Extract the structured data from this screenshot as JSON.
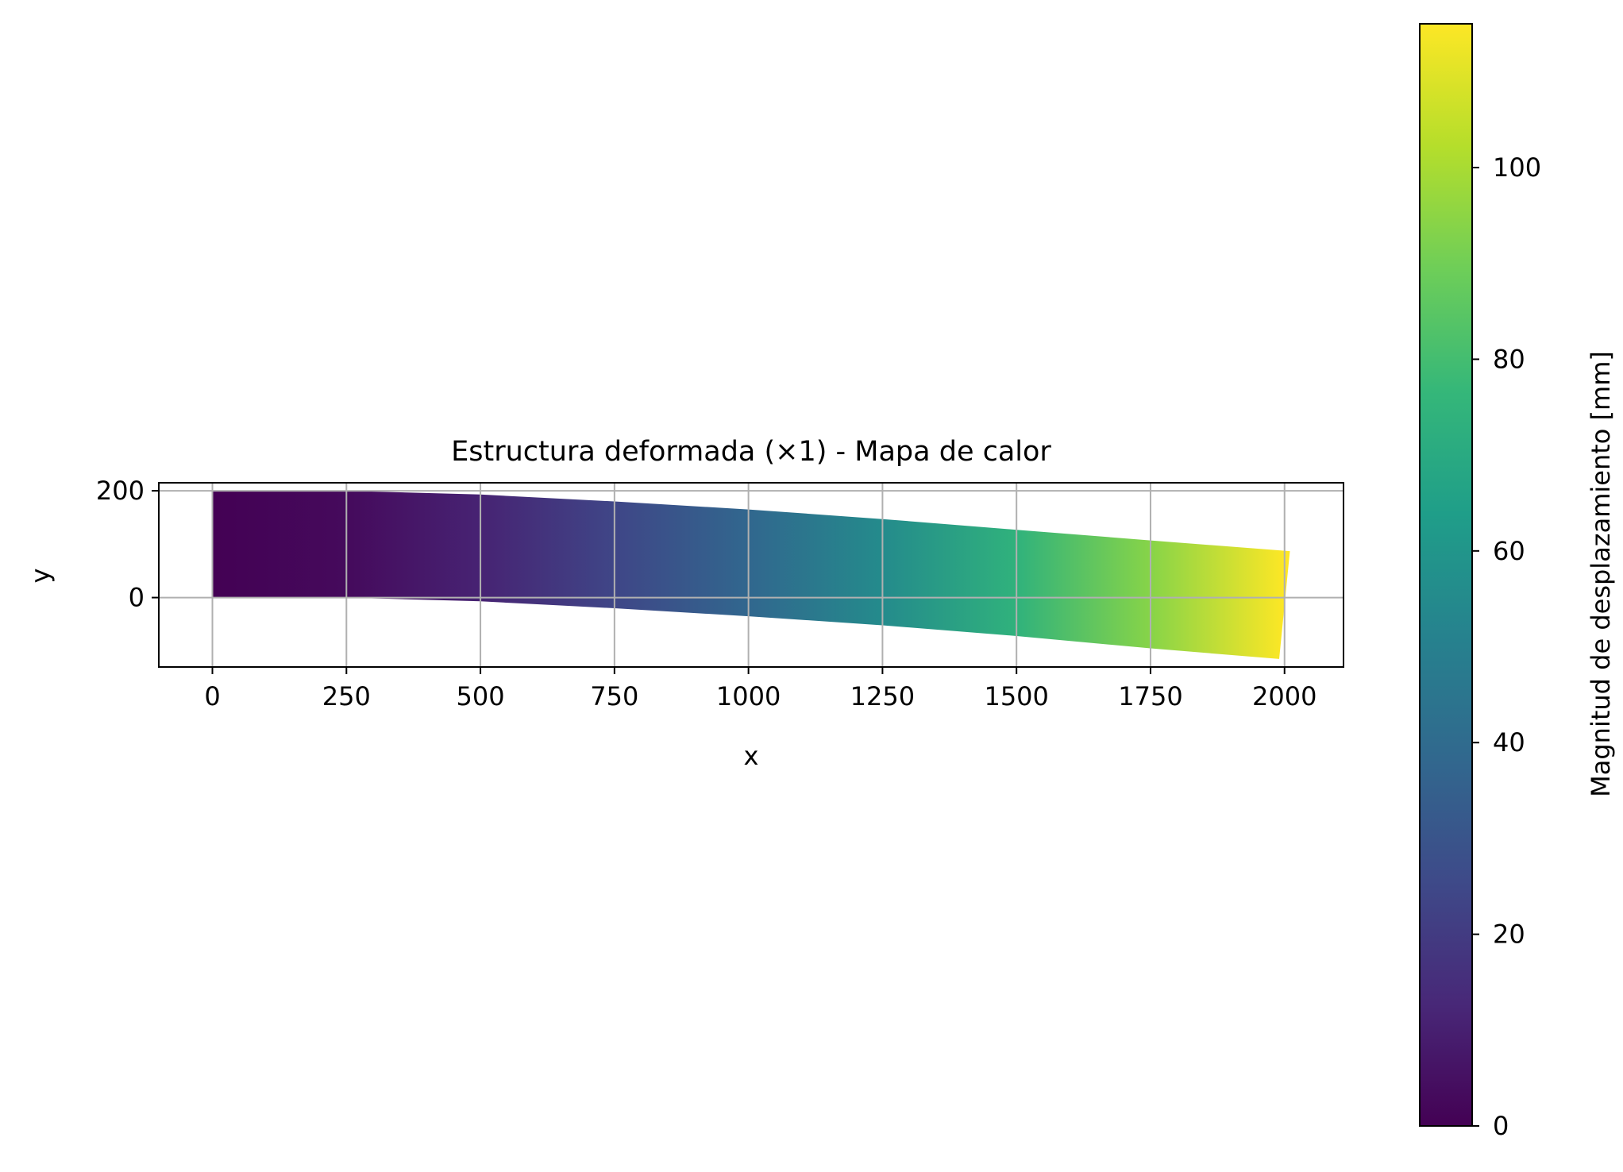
{
  "chart_data": {
    "type": "heatmap",
    "title": "Estructura deformada (×1) - Mapa de calor",
    "xlabel": "x",
    "ylabel": "y",
    "xlim": [
      -100,
      2110
    ],
    "ylim": [
      -130,
      215
    ],
    "xticks": [
      0,
      250,
      500,
      750,
      1000,
      1250,
      1500,
      1750,
      2000
    ],
    "yticks": [
      0,
      200
    ],
    "grid": true,
    "colormap": "viridis",
    "colormap_stops": [
      "#440154",
      "#482878",
      "#3e4a89",
      "#31688e",
      "#26828e",
      "#1f9e89",
      "#35b779",
      "#6ece58",
      "#b5de2b",
      "#fde725"
    ],
    "colorbar": {
      "label": "Magnitud de desplazamiento [mm]",
      "min": 0,
      "max": 115,
      "ticks": [
        0,
        20,
        40,
        60,
        80,
        100
      ]
    },
    "deformed_shape": {
      "top_edge": [
        {
          "x": 0,
          "y": 200
        },
        {
          "x": 250,
          "y": 200
        },
        {
          "x": 500,
          "y": 193
        },
        {
          "x": 750,
          "y": 180
        },
        {
          "x": 1000,
          "y": 165
        },
        {
          "x": 1250,
          "y": 147
        },
        {
          "x": 1500,
          "y": 127
        },
        {
          "x": 1750,
          "y": 107
        },
        {
          "x": 2010,
          "y": 87
        }
      ],
      "bottom_edge": [
        {
          "x": 0,
          "y": 0
        },
        {
          "x": 250,
          "y": 0
        },
        {
          "x": 500,
          "y": -7
        },
        {
          "x": 750,
          "y": -20
        },
        {
          "x": 1000,
          "y": -35
        },
        {
          "x": 1250,
          "y": -52
        },
        {
          "x": 1500,
          "y": -72
        },
        {
          "x": 1750,
          "y": -95
        },
        {
          "x": 1990,
          "y": -115
        }
      ],
      "displacement_along_x": [
        {
          "x": 0,
          "displacement": 0
        },
        {
          "x": 250,
          "displacement": 3
        },
        {
          "x": 500,
          "displacement": 11
        },
        {
          "x": 750,
          "displacement": 24
        },
        {
          "x": 1000,
          "displacement": 38
        },
        {
          "x": 1250,
          "displacement": 55
        },
        {
          "x": 1500,
          "displacement": 74
        },
        {
          "x": 1750,
          "displacement": 94
        },
        {
          "x": 2000,
          "displacement": 115
        }
      ]
    }
  }
}
